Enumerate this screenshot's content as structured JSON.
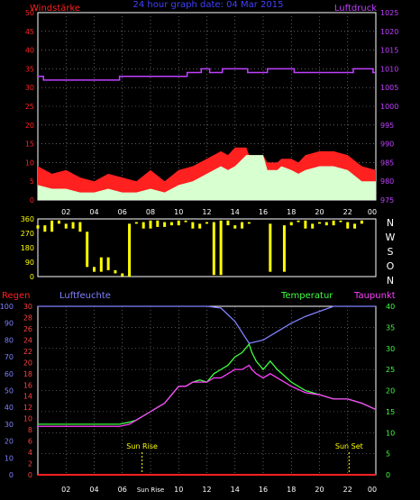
{
  "colors": {
    "background": "#000000",
    "frame": "#ffffff",
    "grid": "#9a9a9a",
    "wind": "#ff2020",
    "wind_avg": "#d8ffd0",
    "pressure": "#c040ff",
    "direction": "#ffff00",
    "humidity": "#8080ff",
    "temperature": "#40ff40",
    "dewpoint": "#ff40ff",
    "rain": "#ff2020",
    "sun": "#ffff00",
    "hum_axis": "#8080ff",
    "rain_axis": "#ff4040",
    "temp_axis": "#40ff40"
  },
  "title": "24 hour graph date: 04 Mar 2015",
  "time_ticks": [
    "02",
    "04",
    "06",
    "08",
    "10",
    "12",
    "14",
    "16",
    "18",
    "20",
    "22",
    "00"
  ],
  "sun_rise_tick": "Sun Rise",
  "chart_data": [
    {
      "type": "line",
      "title": "24 hour graph date: 04 Mar 2015",
      "left_axis": {
        "label": "Windstärke",
        "ticks": [
          0,
          5,
          10,
          15,
          20,
          25,
          30,
          35,
          40,
          45,
          50
        ],
        "range": [
          0,
          50
        ]
      },
      "right_axis": {
        "label": "Luftdruck",
        "ticks": [
          975,
          980,
          985,
          990,
          995,
          1000,
          1005,
          1010,
          1015,
          1020,
          1025
        ],
        "range": [
          975,
          1025
        ]
      },
      "x_ticks": [
        "02",
        "04",
        "06",
        "08",
        "10",
        "12",
        "14",
        "16",
        "18",
        "20",
        "22",
        "00"
      ],
      "x_range_hours": [
        0,
        24
      ],
      "grid": true,
      "series": [
        {
          "name": "Luftdruck",
          "axis": "right",
          "x": [
            0,
            0.4,
            0.4,
            5.8,
            5.8,
            10.6,
            10.6,
            11.6,
            11.6,
            12.2,
            12.2,
            13.1,
            13.1,
            14.9,
            14.9,
            16.3,
            16.3,
            18.2,
            18.2,
            22.4,
            22.4,
            23.8,
            23.8,
            24
          ],
          "values": [
            1008,
            1008,
            1007,
            1007,
            1008,
            1008,
            1009,
            1009,
            1010,
            1010,
            1009,
            1009,
            1010,
            1010,
            1009,
            1009,
            1010,
            1010,
            1009,
            1009,
            1010,
            1010,
            1009,
            1009
          ]
        },
        {
          "name": "wind gust",
          "axis": "left",
          "x": [
            0,
            1,
            2,
            3,
            4,
            5,
            6,
            7,
            8,
            9,
            10,
            11,
            12,
            13,
            13.5,
            14,
            14.8,
            15,
            16,
            16.3,
            17,
            17.3,
            18,
            18.5,
            19,
            20,
            21,
            22,
            23,
            24
          ],
          "values": [
            9,
            7,
            8,
            6,
            5,
            7,
            6,
            5,
            8,
            5,
            8,
            9,
            11,
            13,
            12,
            14,
            14,
            12,
            12,
            10,
            10,
            11,
            11,
            10,
            12,
            13,
            13,
            12,
            9,
            8
          ]
        },
        {
          "name": "wind average",
          "axis": "left",
          "x": [
            0,
            1,
            2,
            3,
            4,
            5,
            6,
            7,
            8,
            9,
            10,
            11,
            12,
            13,
            13.5,
            14,
            14.8,
            15,
            16,
            16.3,
            17,
            17.3,
            18,
            18.5,
            19,
            20,
            21,
            22,
            23,
            24
          ],
          "values": [
            4,
            3,
            3,
            2,
            2,
            3,
            2,
            2,
            3,
            2,
            4,
            5,
            7,
            9,
            8,
            9,
            12,
            12,
            12,
            8,
            8,
            9,
            8,
            7,
            8,
            9,
            9,
            8,
            5,
            5
          ]
        }
      ]
    },
    {
      "type": "scatter",
      "title": "",
      "left_axis": {
        "ticks": [
          0,
          90,
          180,
          270,
          360
        ],
        "range": [
          0,
          360
        ]
      },
      "right_axis_labels": [
        "N",
        "W",
        "S",
        "O",
        "N"
      ],
      "x_range_hours": [
        0,
        24
      ],
      "series": [
        {
          "name": "wind direction",
          "x": [
            0,
            0.5,
            1,
            1.5,
            2,
            2.5,
            3,
            3.5,
            4,
            4.5,
            5,
            5.5,
            6,
            6.5,
            7,
            7.5,
            8,
            8.5,
            9,
            9.5,
            10,
            10.5,
            11,
            11.5,
            12,
            12.5,
            13,
            13.5,
            14,
            14.5,
            15,
            15.5,
            16,
            16.5,
            17,
            17.5,
            18,
            18.5,
            19,
            19.5,
            20,
            20.5,
            21,
            21.5,
            22,
            22.5,
            23,
            23.5
          ],
          "values": [
            300,
            320,
            280,
            350,
            330,
            300,
            340,
            280,
            60,
            30,
            120,
            40,
            20,
            0,
            330,
            340,
            300,
            350,
            310,
            340,
            320,
            350,
            340,
            300,
            330,
            340,
            10,
            350,
            320,
            300,
            340,
            330,
            330,
            330,
            30,
            30,
            320,
            340,
            350,
            300,
            330,
            340,
            320,
            350,
            340,
            300,
            330,
            350
          ]
        }
      ]
    },
    {
      "type": "line",
      "title": "",
      "legend": [
        "Regen",
        "Luftfeuchte",
        "Temperatur",
        "Taupunkt"
      ],
      "humidity_axis": {
        "ticks": [
          0,
          10,
          20,
          30,
          40,
          50,
          60,
          70,
          80,
          90,
          100
        ],
        "range": [
          0,
          100
        ]
      },
      "rain_axis": {
        "ticks": [
          0,
          2,
          4,
          6,
          8,
          10,
          12,
          14,
          16,
          18,
          20,
          22,
          24,
          26,
          28,
          30
        ],
        "range": [
          0,
          30
        ]
      },
      "temp_axis": {
        "ticks": [
          0,
          5,
          10,
          15,
          20,
          25,
          30,
          35,
          40
        ],
        "range": [
          0,
          40
        ]
      },
      "x_ticks": [
        "02",
        "04",
        "06",
        "08",
        "10",
        "12",
        "14",
        "16",
        "18",
        "20",
        "22",
        "00"
      ],
      "x_range_hours": [
        0,
        24
      ],
      "annotations": [
        {
          "text": "Sun Rise",
          "x": 7.4
        },
        {
          "text": "Sun Set",
          "x": 22.1
        }
      ],
      "grid": true,
      "series": [
        {
          "name": "Luftfeuchte",
          "axis": "humidity",
          "x": [
            0,
            2,
            4,
            6,
            8,
            10,
            10.6,
            11,
            12,
            13,
            14,
            15,
            15.5,
            16,
            17,
            18,
            19,
            20,
            21,
            22,
            23,
            24
          ],
          "values": [
            100,
            100,
            100,
            100,
            100,
            100,
            100,
            100,
            100,
            99,
            91,
            78,
            79,
            80,
            85,
            90,
            94,
            97,
            100,
            100,
            100,
            100
          ]
        },
        {
          "name": "Temperatur",
          "axis": "temp",
          "x": [
            0,
            1,
            2,
            3,
            4,
            5,
            5.8,
            6.5,
            7,
            8,
            8.5,
            9,
            9.5,
            10,
            10.5,
            11,
            11.5,
            12,
            12.5,
            13,
            13.5,
            14,
            14.5,
            15,
            15.2,
            15.5,
            16,
            16.5,
            17,
            18,
            19,
            20,
            21,
            22,
            23,
            24
          ],
          "values": [
            12,
            12,
            12,
            12,
            12,
            12,
            12,
            12.5,
            13,
            15,
            16,
            17,
            19,
            21,
            21,
            22,
            22.5,
            22,
            24,
            25,
            26,
            28,
            29,
            31,
            29,
            27,
            25,
            27,
            25,
            22,
            20,
            19,
            18,
            18,
            17,
            15.5
          ]
        },
        {
          "name": "Taupunkt",
          "axis": "temp",
          "x": [
            0,
            1,
            2,
            3,
            4,
            5,
            5.8,
            6.5,
            7,
            8,
            8.5,
            9,
            9.5,
            10,
            10.5,
            11,
            11.5,
            12,
            12.5,
            13,
            13.5,
            14,
            14.5,
            15,
            15.2,
            15.5,
            16,
            16.5,
            17,
            18,
            19,
            20,
            21,
            22,
            23,
            24
          ],
          "values": [
            11.5,
            11.5,
            11.5,
            11.5,
            11.5,
            11.5,
            11.5,
            12,
            13,
            15,
            16,
            17,
            19,
            21,
            21,
            22,
            22,
            22,
            23,
            23,
            24,
            25,
            25,
            26,
            25,
            24,
            23,
            24,
            23,
            21,
            19.5,
            19,
            18,
            18,
            17,
            15.5
          ]
        },
        {
          "name": "Regen",
          "axis": "rain",
          "x": [
            0,
            24
          ],
          "values": [
            0,
            0
          ]
        }
      ]
    }
  ]
}
